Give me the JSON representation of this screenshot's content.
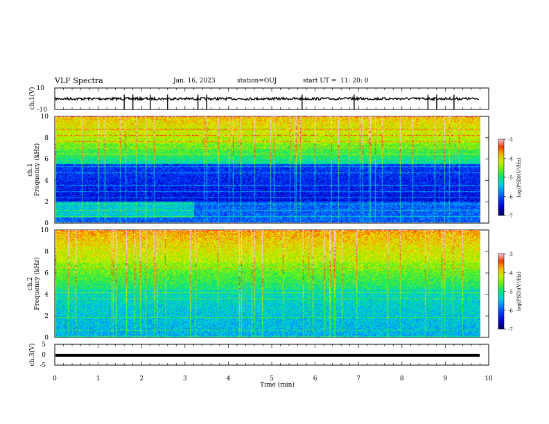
{
  "header": {
    "title": "VLF Spectra",
    "date": "Jan. 16, 2023",
    "station": "station=OUJ",
    "start": "start UT =  11: 20: 0"
  },
  "chart_data": [
    {
      "type": "line",
      "ylabel": "ch.1(V)",
      "ylim": [
        -10,
        10
      ],
      "yticks": [
        "10",
        "-10"
      ],
      "xlim": [
        0,
        10
      ],
      "baseline": 0,
      "spikes_at_min": [
        1.6,
        1.8,
        2.2,
        2.6,
        3.3,
        3.5,
        5.7,
        6.9,
        8.6,
        8.8,
        9.2
      ]
    },
    {
      "type": "heatmap",
      "ylabel": "ch.1\nFrequency (kHz)",
      "ylim": [
        0,
        10
      ],
      "yticks": [
        "0",
        "2",
        "4",
        "6",
        "8",
        "10"
      ],
      "xlim": [
        0,
        10
      ],
      "colorbar": {
        "label": "log(PSD)(V²/Hz)",
        "ticks": [
          "-3",
          "-4",
          "-5",
          "-6",
          "-7"
        ],
        "range": [
          -7,
          -3
        ]
      }
    },
    {
      "type": "heatmap",
      "ylabel": "ch.2\nFrequency (kHz)",
      "ylim": [
        0,
        10
      ],
      "yticks": [
        "0",
        "2",
        "4",
        "6",
        "8",
        "10"
      ],
      "xlim": [
        0,
        10
      ],
      "colorbar": {
        "label": "log(PSD)(V²/Hz)",
        "ticks": [
          "-3",
          "-4",
          "-5",
          "-6",
          "-7"
        ],
        "range": [
          -7,
          -3
        ]
      }
    },
    {
      "type": "line",
      "ylabel": "ch.3(V)",
      "ylim": [
        -5,
        5
      ],
      "yticks": [
        "5",
        "0",
        "-5"
      ],
      "xlim": [
        0,
        10
      ],
      "constant_value": -0.3
    }
  ],
  "xaxis": {
    "label": "Time (min)",
    "ticks": [
      "0",
      "1",
      "2",
      "3",
      "4",
      "5",
      "6",
      "7",
      "8",
      "9",
      "10"
    ]
  }
}
